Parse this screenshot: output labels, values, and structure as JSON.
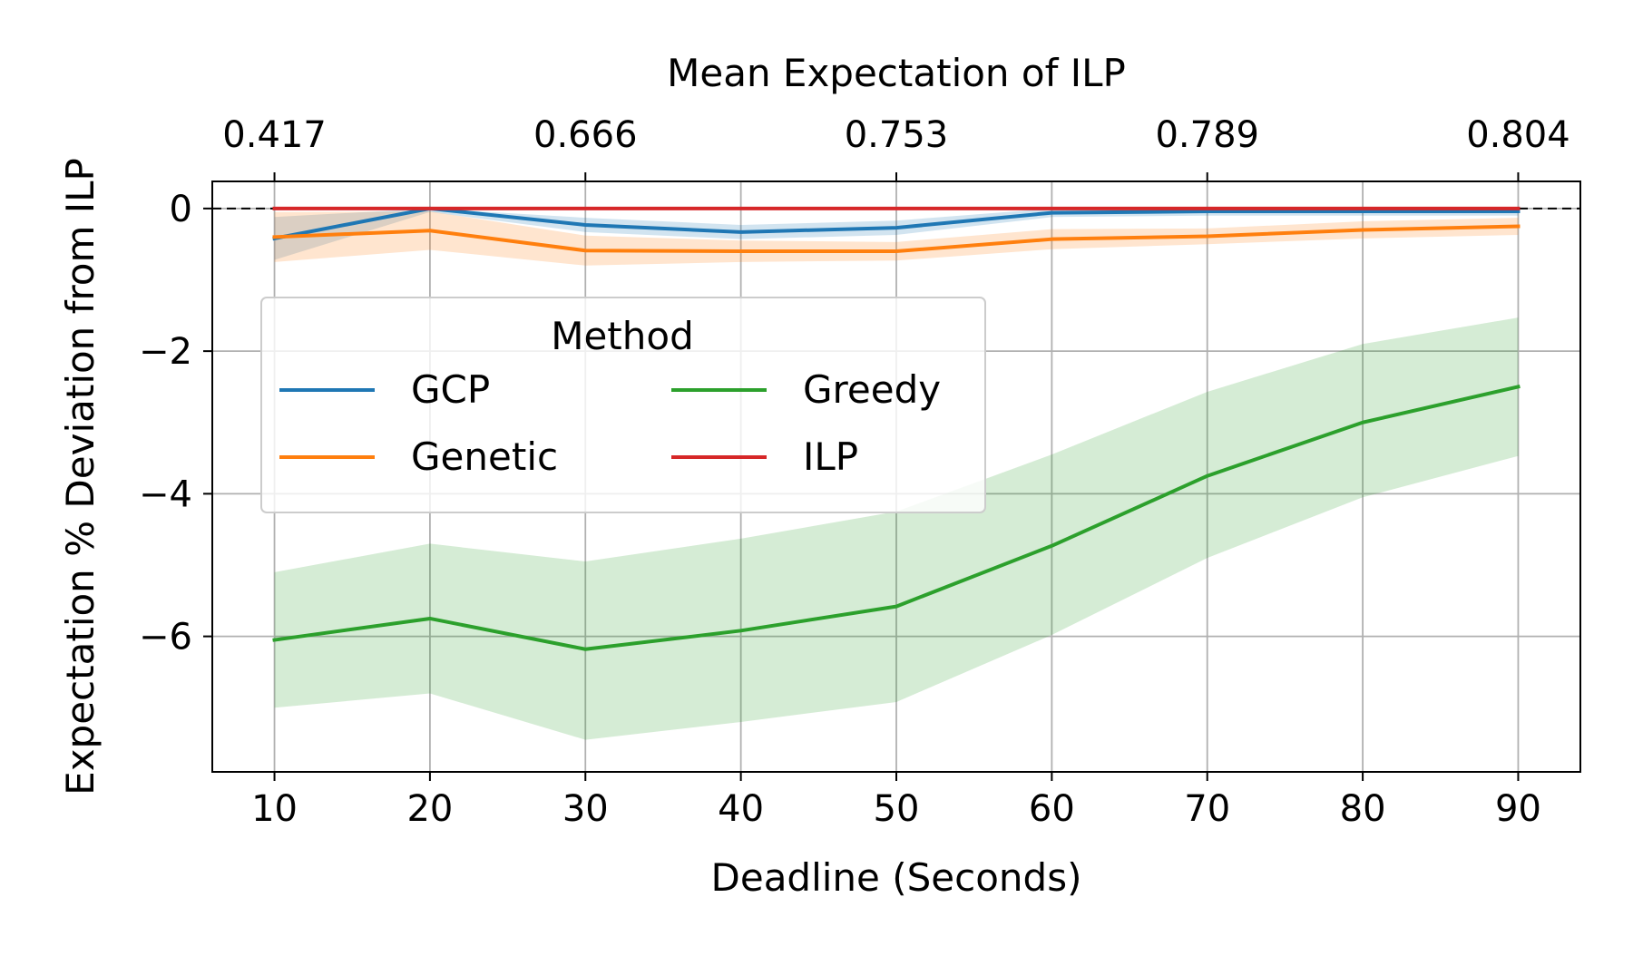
{
  "chart_data": {
    "type": "line",
    "xlabel": "Deadline (Seconds)",
    "ylabel": "Expectation % Deviation from ILP",
    "top_xlabel": "Mean Expectation of ILP",
    "x": [
      10,
      20,
      30,
      40,
      50,
      60,
      70,
      80,
      90
    ],
    "xlim": [
      6,
      94
    ],
    "ylim": [
      -7.9,
      0.38
    ],
    "xticks": [
      10,
      20,
      30,
      40,
      50,
      60,
      70,
      80,
      90
    ],
    "xtick_labels": [
      "10",
      "20",
      "30",
      "40",
      "50",
      "60",
      "70",
      "80",
      "90"
    ],
    "yticks": [
      0,
      -2,
      -4,
      -6
    ],
    "ytick_labels": [
      "0",
      "−2",
      "−4",
      "−6"
    ],
    "top_xticks": [
      10,
      30,
      50,
      70,
      90
    ],
    "top_xtick_labels": [
      "0.417",
      "0.666",
      "0.753",
      "0.789",
      "0.804"
    ],
    "grid": true,
    "reference_line": {
      "y": 0,
      "style": "dashed",
      "color": "#000000"
    },
    "legend": {
      "title": "Method",
      "placement": "center-left",
      "columns": 2,
      "entries": [
        "GCP",
        "Genetic",
        "Greedy",
        "ILP"
      ]
    },
    "series": [
      {
        "name": "GCP",
        "color": "#1f77b4",
        "values": [
          -0.42,
          0.0,
          -0.23,
          -0.33,
          -0.27,
          -0.06,
          -0.04,
          -0.04,
          -0.04
        ],
        "lower": [
          -0.72,
          -0.05,
          -0.33,
          -0.43,
          -0.37,
          -0.12,
          -0.1,
          -0.1,
          -0.1
        ],
        "upper": [
          -0.12,
          0.0,
          -0.13,
          -0.23,
          -0.17,
          0.0,
          0.0,
          0.0,
          0.0
        ]
      },
      {
        "name": "Genetic",
        "color": "#ff7f0e",
        "values": [
          -0.4,
          -0.31,
          -0.59,
          -0.6,
          -0.6,
          -0.43,
          -0.39,
          -0.3,
          -0.25
        ],
        "lower": [
          -0.75,
          -0.58,
          -0.8,
          -0.75,
          -0.73,
          -0.57,
          -0.5,
          -0.42,
          -0.37
        ],
        "upper": [
          -0.05,
          -0.04,
          -0.38,
          -0.45,
          -0.47,
          -0.29,
          -0.28,
          -0.18,
          -0.13
        ]
      },
      {
        "name": "Greedy",
        "color": "#2ca02c",
        "values": [
          -6.05,
          -5.75,
          -6.18,
          -5.92,
          -5.58,
          -4.73,
          -3.75,
          -3.0,
          -2.5
        ],
        "lower": [
          -7.0,
          -6.8,
          -7.45,
          -7.2,
          -6.92,
          -5.98,
          -4.9,
          -4.05,
          -3.47
        ],
        "upper": [
          -5.1,
          -4.7,
          -4.95,
          -4.63,
          -4.25,
          -3.45,
          -2.57,
          -1.9,
          -1.53
        ]
      },
      {
        "name": "ILP",
        "color": "#d62728",
        "values": [
          0,
          0,
          0,
          0,
          0,
          0,
          0,
          0,
          0
        ]
      }
    ]
  }
}
